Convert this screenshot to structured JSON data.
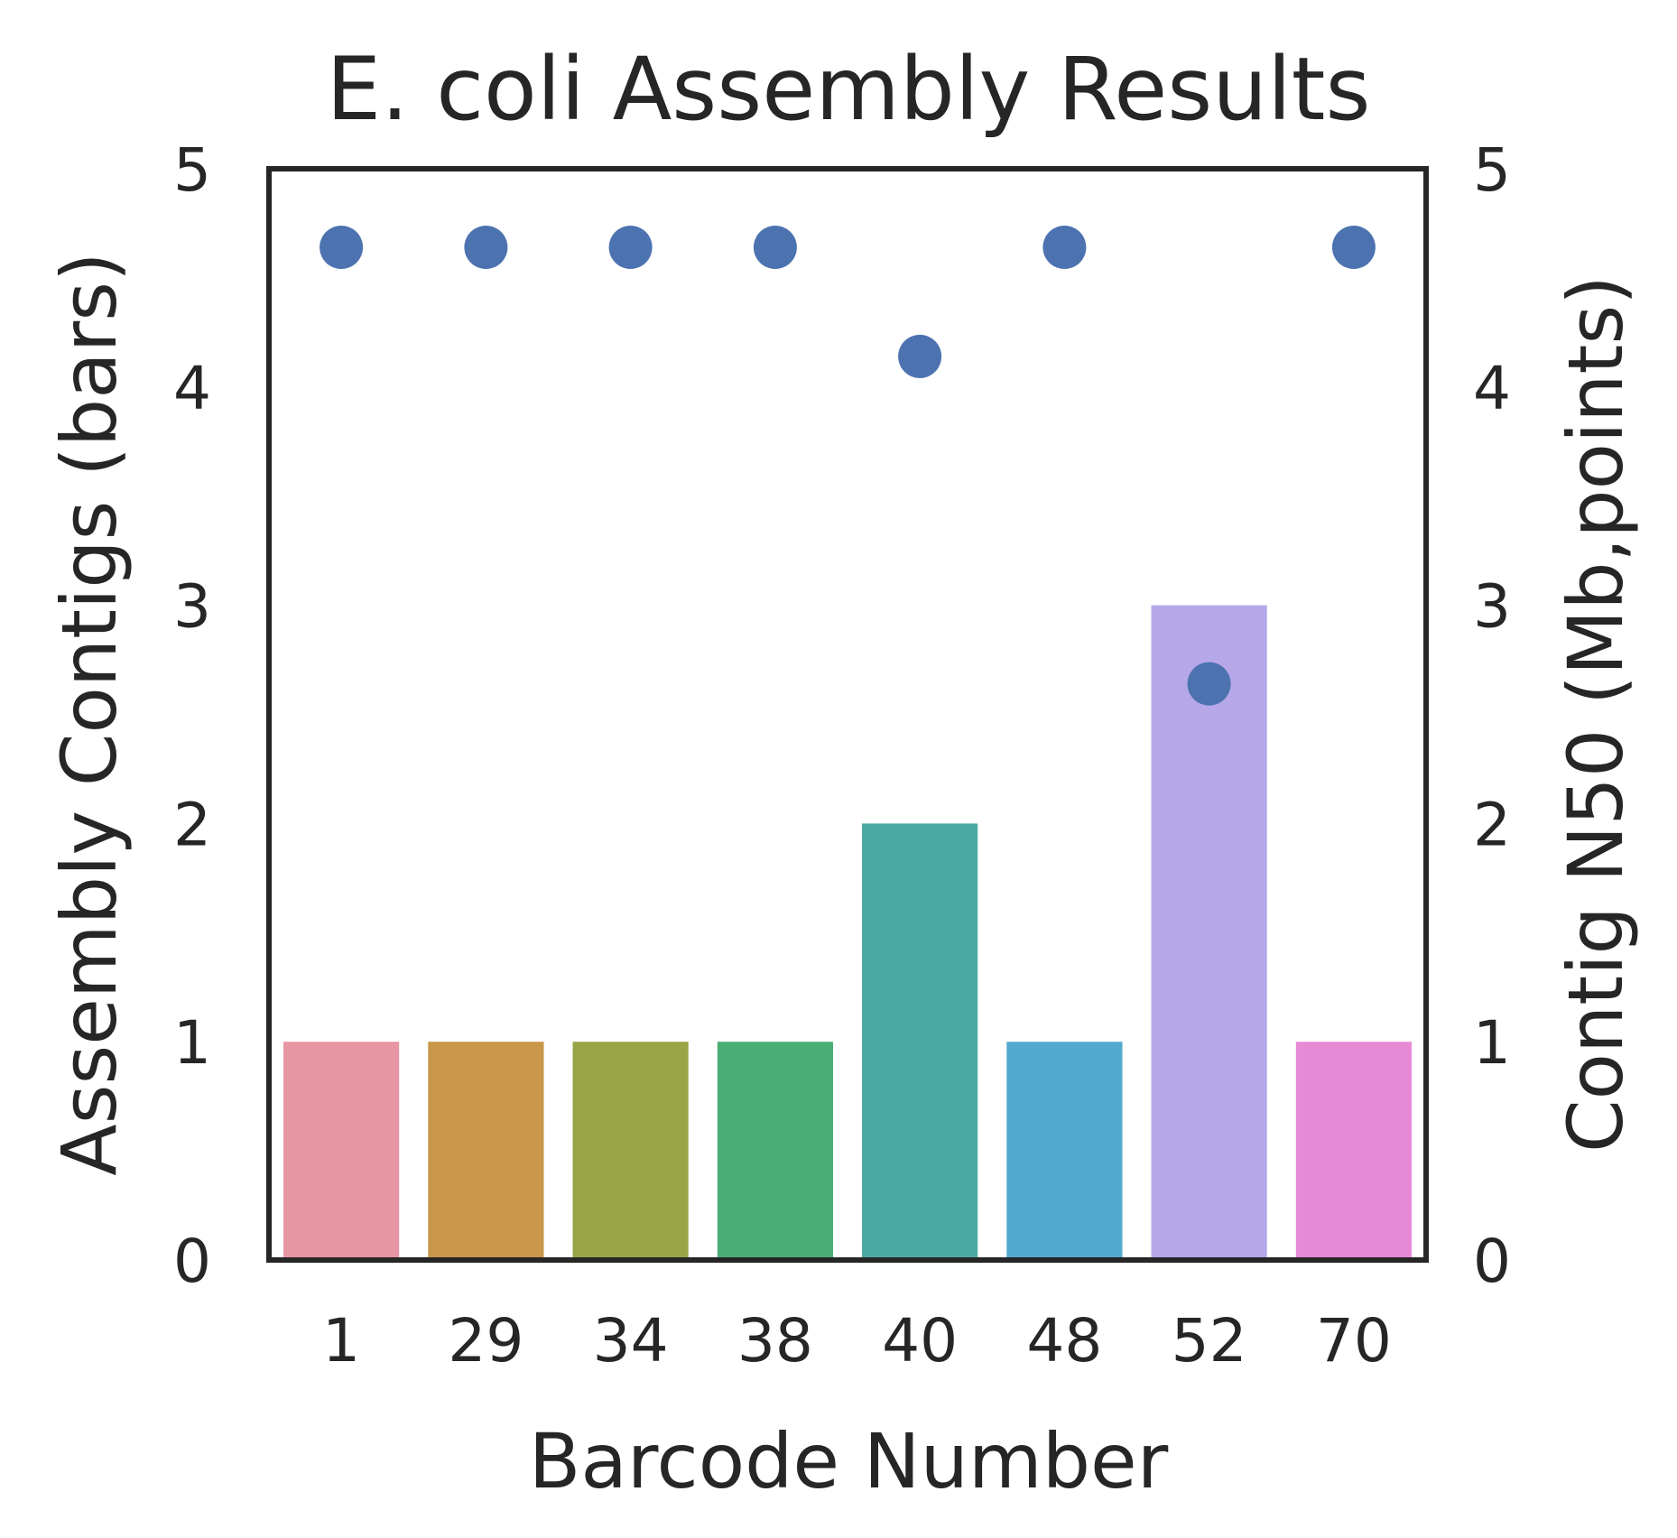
{
  "chart_data": {
    "type": "bar",
    "title": "E. coli Assembly Results",
    "xlabel": "Barcode Number",
    "ylabel": "Assembly Contigs (bars)",
    "y2label": "Contig N50 (Mb,points)",
    "categories": [
      "1",
      "29",
      "34",
      "38",
      "40",
      "48",
      "52",
      "70"
    ],
    "ylim": [
      0,
      5
    ],
    "y2lim": [
      0,
      5
    ],
    "yticks": [
      "0",
      "1",
      "2",
      "3",
      "4",
      "5"
    ],
    "y2ticks": [
      "0",
      "1",
      "2",
      "3",
      "4",
      "5"
    ],
    "grid": false,
    "series": [
      {
        "kind": "bar",
        "axis": "left",
        "values": [
          1,
          1,
          1,
          1,
          2,
          1,
          3,
          1
        ],
        "colors": [
          "#e896a4",
          "#c9974a",
          "#99a447",
          "#4aae74",
          "#4caaa4",
          "#54a9cf",
          "#b6a7e9",
          "#e78ad6"
        ]
      },
      {
        "kind": "scatter",
        "axis": "right",
        "values": [
          4.64,
          4.64,
          4.64,
          4.64,
          4.14,
          4.64,
          2.64,
          4.64
        ],
        "color": "#4c72b0"
      }
    ]
  }
}
